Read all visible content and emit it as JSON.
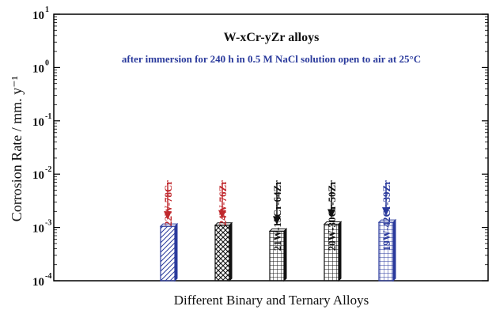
{
  "chart_data": {
    "type": "bar",
    "title": "W-xCr-yZr alloys",
    "subtitle": "after immersion for 240 h in 0.5 M NaCl solution open to air at 25°C",
    "xlabel": "Different Binary and Ternary Alloys",
    "ylabel": "Corrosion Rate / mm. y⁻¹",
    "yscale": "log",
    "ylim": [
      0.0001,
      10
    ],
    "yticks": [
      {
        "base": "10",
        "exp": "1"
      },
      {
        "base": "10",
        "exp": "0"
      },
      {
        "base": "10",
        "exp": "-1"
      },
      {
        "base": "10",
        "exp": "-2"
      },
      {
        "base": "10",
        "exp": "-3"
      },
      {
        "base": "10",
        "exp": "-4"
      }
    ],
    "grid": false,
    "legend": "none",
    "categories": [
      "22W-78Cr",
      "24W-76Zr",
      "21W-15Cr-64Zr",
      "20W-30Cr-50Zr",
      "19W-42Cr-39Zr"
    ],
    "values": [
      0.00105,
      0.0011,
      0.00085,
      0.00115,
      0.00125
    ],
    "label_colors": [
      "#c0282d",
      "#c0282d",
      "#111111",
      "#111111",
      "#2a3a9c"
    ],
    "patterns": [
      "diagonal",
      "crosshatch",
      "grid",
      "grid",
      "grid"
    ],
    "pattern_colors": [
      "#2a3a9c",
      "#111111",
      "#111111",
      "#111111",
      "#2a3a9c"
    ],
    "colors": {
      "axis": "#000000",
      "title": "#111111",
      "subtitle": "#2a3a9c"
    }
  }
}
